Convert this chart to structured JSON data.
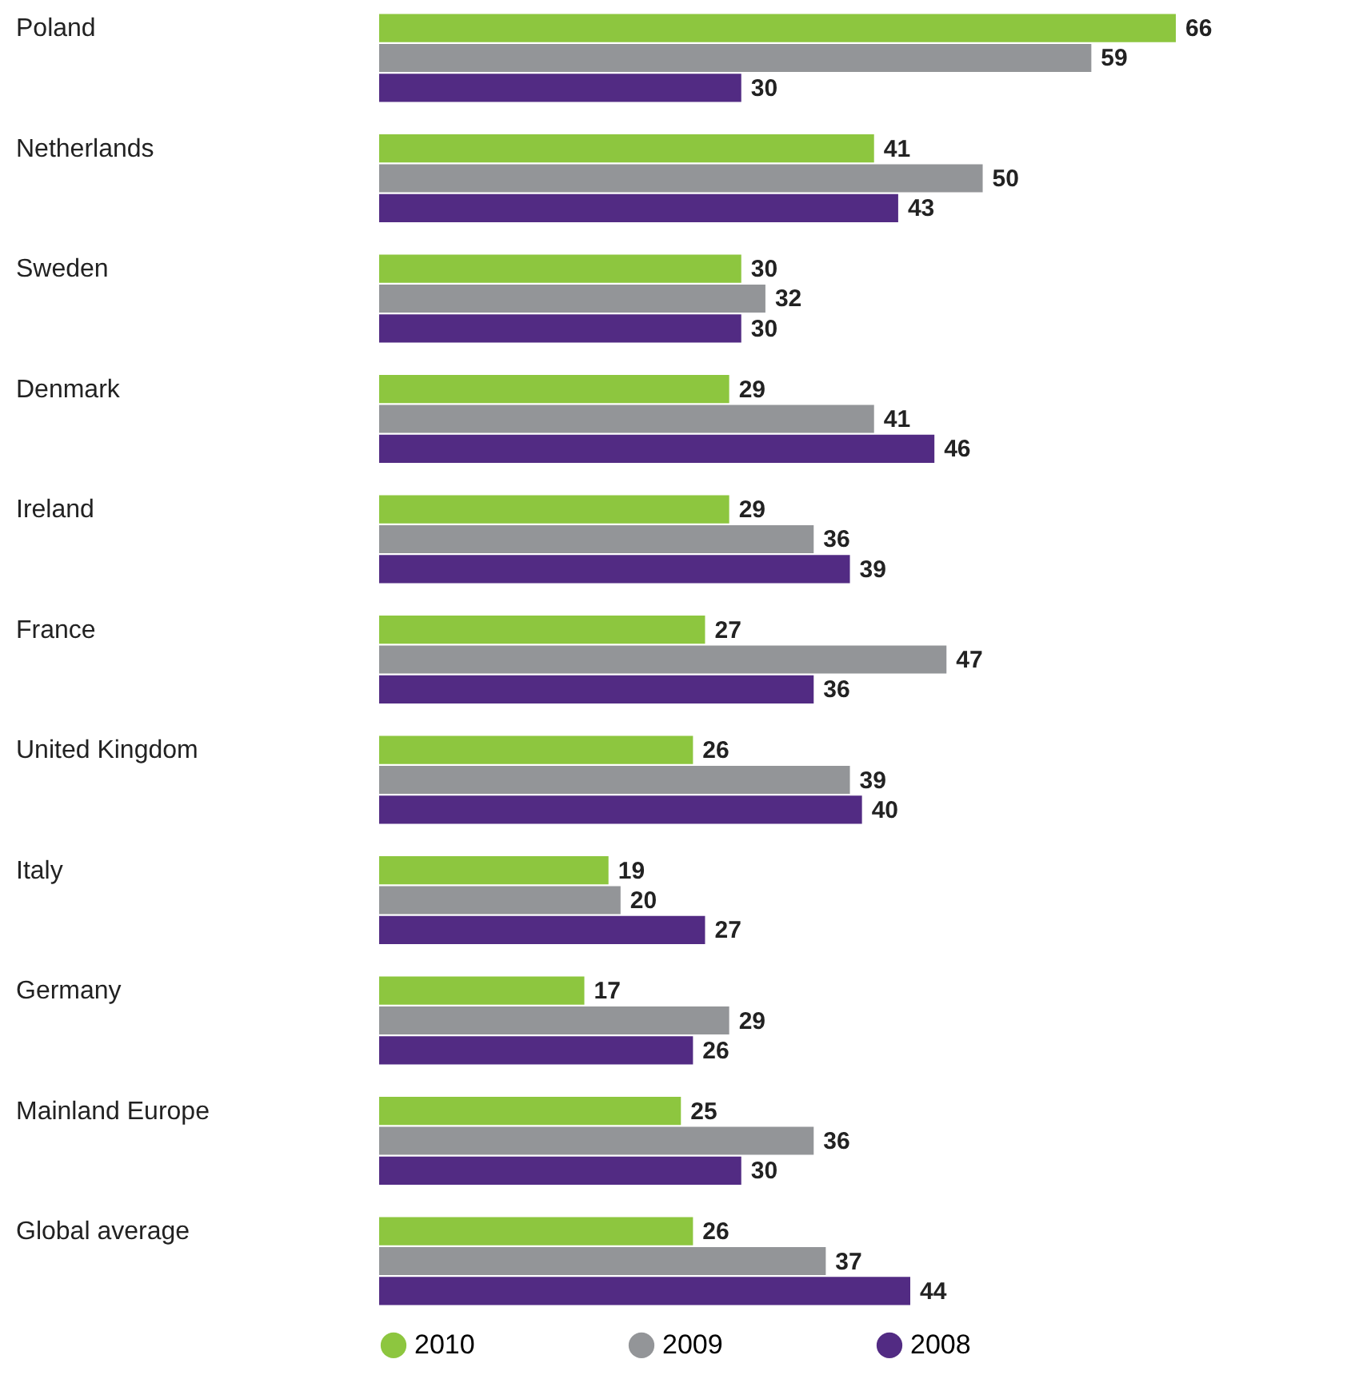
{
  "chart_data": {
    "type": "bar",
    "orientation": "horizontal",
    "data_labels": true,
    "legend": "bottom",
    "grid": false,
    "categories": [
      "Poland",
      "Netherlands",
      "Sweden",
      "Denmark",
      "Ireland",
      "France",
      "United Kingdom",
      "Italy",
      "Germany",
      "Mainland Europe",
      "Global average"
    ],
    "series": [
      {
        "name": "2010",
        "color": "#8dc63f",
        "values": [
          66,
          41,
          30,
          29,
          29,
          27,
          26,
          19,
          17,
          25,
          26
        ]
      },
      {
        "name": "2009",
        "color": "#939598",
        "values": [
          59,
          50,
          32,
          41,
          36,
          47,
          39,
          20,
          29,
          36,
          37
        ]
      },
      {
        "name": "2008",
        "color": "#522b83",
        "values": [
          30,
          43,
          30,
          46,
          39,
          36,
          40,
          27,
          26,
          30,
          44
        ]
      }
    ]
  }
}
